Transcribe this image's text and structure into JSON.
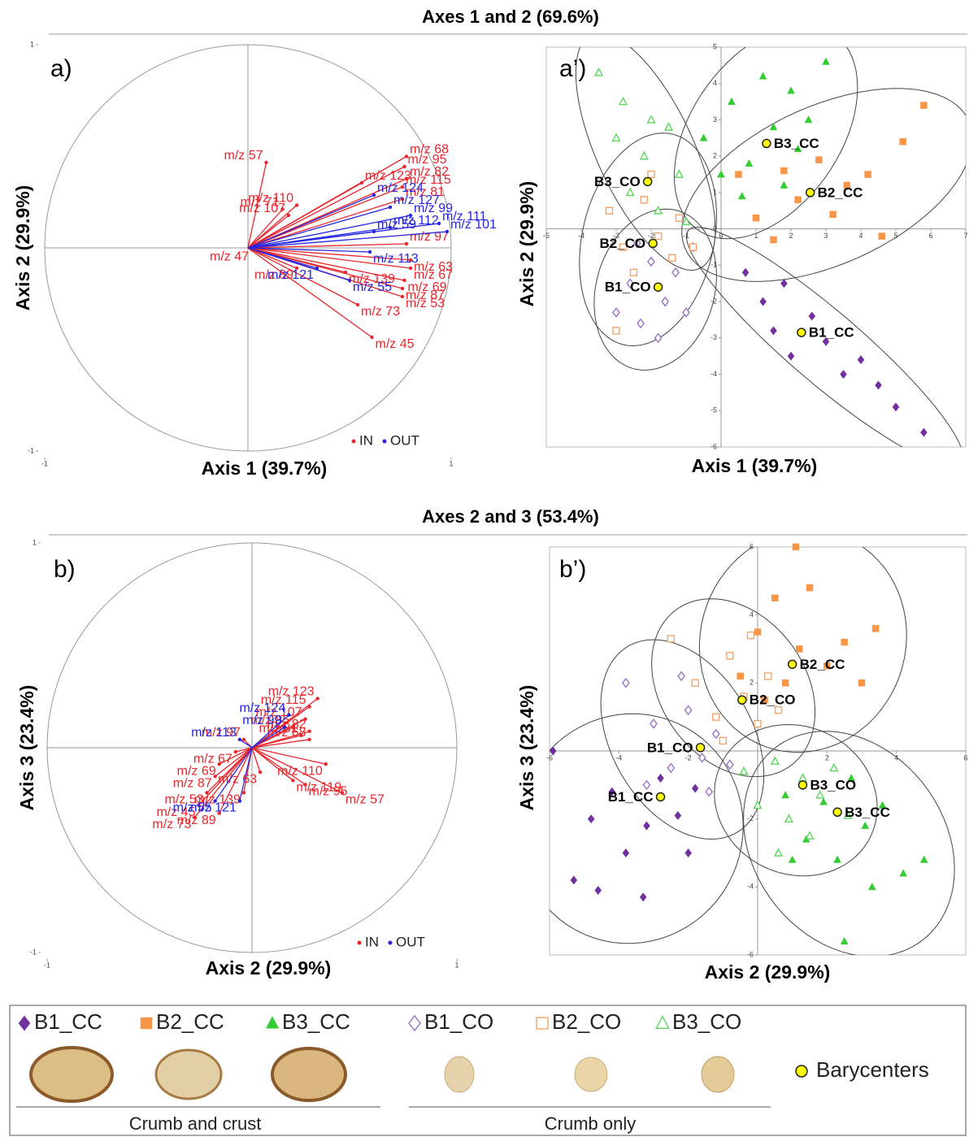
{
  "sections": [
    {
      "title": "Axes 1 and 2 (69.6%)"
    },
    {
      "title": "Axes 2 and 3 (53.4%)"
    }
  ],
  "chart_data": [
    {
      "type": "biplot",
      "panel_label": "a)",
      "xlabel": "Axis 1 (39.7%)",
      "ylabel": "Axis 2 (29.9%)",
      "xlim": [
        -1,
        1
      ],
      "ylim": [
        -1,
        1
      ],
      "xticks": [
        -1,
        1
      ],
      "yticks": [
        -1,
        1
      ],
      "legend": "bottom-right",
      "series": [
        {
          "name": "IN",
          "color": "#e8262b",
          "points": [
            {
              "label": "m/z 57",
              "x": 0.09,
              "y": 0.42
            },
            {
              "label": "m/z 110",
              "x": 0.24,
              "y": 0.21
            },
            {
              "label": "m/z 71",
              "x": 0.17,
              "y": 0.19
            },
            {
              "label": "m/z 107",
              "x": 0.2,
              "y": 0.16
            },
            {
              "label": "m/z 123",
              "x": 0.56,
              "y": 0.32
            },
            {
              "label": "m/z 68",
              "x": 0.78,
              "y": 0.45
            },
            {
              "label": "m/z 95",
              "x": 0.77,
              "y": 0.4
            },
            {
              "label": "m/z 82",
              "x": 0.78,
              "y": 0.34
            },
            {
              "label": "m/z 115",
              "x": 0.76,
              "y": 0.3
            },
            {
              "label": "m/z 81",
              "x": 0.76,
              "y": 0.24
            },
            {
              "label": "m/z 97",
              "x": 0.78,
              "y": 0.02
            },
            {
              "label": "m/z 63",
              "x": 0.8,
              "y": -0.06
            },
            {
              "label": "m/z 67",
              "x": 0.8,
              "y": -0.1
            },
            {
              "label": "m/z 69",
              "x": 0.77,
              "y": -0.16
            },
            {
              "label": "m/z 87",
              "x": 0.76,
              "y": -0.2
            },
            {
              "label": "m/z 53",
              "x": 0.76,
              "y": -0.24
            },
            {
              "label": "m/z 73",
              "x": 0.54,
              "y": -0.28
            },
            {
              "label": "m/z 45",
              "x": 0.61,
              "y": -0.44
            },
            {
              "label": "m/z 89",
              "x": 0.24,
              "y": -0.1
            },
            {
              "label": "m/z 139",
              "x": 0.48,
              "y": -0.12
            },
            {
              "label": "m/z 47",
              "x": 0.02,
              "y": -0.01
            }
          ]
        },
        {
          "name": "OUT",
          "color": "#2525e0",
          "points": [
            {
              "label": "m/z 124",
              "x": 0.62,
              "y": 0.26
            },
            {
              "label": "m/z 127",
              "x": 0.7,
              "y": 0.2
            },
            {
              "label": "m/z 99",
              "x": 0.8,
              "y": 0.16
            },
            {
              "label": "m/z 111",
              "x": 0.94,
              "y": 0.12
            },
            {
              "label": "m/z 101",
              "x": 0.98,
              "y": 0.08
            },
            {
              "label": "m/z 112",
              "x": 0.7,
              "y": 0.1
            },
            {
              "label": "m/z 59",
              "x": 0.62,
              "y": 0.08
            },
            {
              "label": "m/z 113",
              "x": 0.6,
              "y": -0.02
            },
            {
              "label": "m/z 121",
              "x": 0.34,
              "y": -0.1
            },
            {
              "label": "m/z 55",
              "x": 0.5,
              "y": -0.16
            }
          ]
        }
      ]
    },
    {
      "type": "scatter",
      "panel_label": "a’)",
      "xlabel": "Axis 1 (39.7%)",
      "ylabel": "Axis 2 (29.9%)",
      "xlim": [
        -5,
        7
      ],
      "ylim": [
        -6,
        5
      ],
      "xticks": [
        -5,
        -4,
        -3,
        -2,
        -1,
        0,
        1,
        2,
        3,
        4,
        5,
        6,
        7
      ],
      "yticks": [
        -6,
        -5,
        -4,
        -3,
        -2,
        -1,
        0,
        1,
        2,
        3,
        4,
        5
      ],
      "series": [
        {
          "name": "B1_CC",
          "color": "#7030a0",
          "marker": "diamond",
          "filled": true,
          "x": [
            0.7,
            1.2,
            1.8,
            2.0,
            2.6,
            3.0,
            3.5,
            4.0,
            4.5,
            5.0,
            5.8,
            1.5
          ],
          "y": [
            -1.2,
            -2.0,
            -1.5,
            -3.5,
            -2.4,
            -3.1,
            -4.0,
            -3.6,
            -4.3,
            -4.9,
            -5.6,
            -2.8
          ]
        },
        {
          "name": "B2_CC",
          "color": "#f79646",
          "marker": "square",
          "filled": true,
          "x": [
            0.5,
            1.0,
            1.8,
            2.2,
            2.8,
            3.2,
            3.6,
            4.2,
            4.6,
            5.2,
            5.8,
            1.5
          ],
          "y": [
            1.5,
            0.3,
            1.6,
            0.8,
            1.9,
            0.4,
            1.2,
            1.5,
            -0.2,
            2.4,
            3.4,
            -0.3
          ]
        },
        {
          "name": "B3_CC",
          "color": "#33cc33",
          "marker": "triangle",
          "filled": true,
          "x": [
            -0.5,
            0,
            0.3,
            0.8,
            1.2,
            1.5,
            1.8,
            2.2,
            2.5,
            3.0,
            0.6,
            2.0
          ],
          "y": [
            2.5,
            1.5,
            3.5,
            1.8,
            4.2,
            2.8,
            1.2,
            2.2,
            3.0,
            4.6,
            0.9,
            3.8
          ]
        },
        {
          "name": "B1_CO",
          "color": "#9b72c4",
          "marker": "diamond",
          "filled": false,
          "x": [
            -3.0,
            -2.6,
            -2.3,
            -2.0,
            -1.6,
            -1.3,
            -1.0,
            -1.8,
            -0.8,
            -2.4
          ],
          "y": [
            -2.3,
            -1.5,
            -2.6,
            -0.9,
            -2.0,
            -1.2,
            -2.3,
            -3.0,
            -0.5,
            -0.4
          ]
        },
        {
          "name": "B2_CO",
          "color": "#f4a468",
          "marker": "square",
          "filled": false,
          "x": [
            -3.2,
            -2.8,
            -2.5,
            -2.2,
            -1.8,
            -1.4,
            -1.2,
            -0.8,
            -3.0,
            -2.0
          ],
          "y": [
            0.5,
            -0.5,
            -1.2,
            0.8,
            -0.2,
            -0.8,
            0.3,
            -0.5,
            -2.8,
            1.5
          ]
        },
        {
          "name": "B3_CO",
          "color": "#5cd65c",
          "marker": "triangle",
          "filled": false,
          "x": [
            -3.5,
            -3.0,
            -2.6,
            -2.2,
            -1.8,
            -1.5,
            -1.2,
            -2.8,
            -1.0,
            -2.0
          ],
          "y": [
            4.3,
            2.5,
            1.0,
            2.0,
            0.5,
            2.8,
            1.5,
            3.5,
            0.2,
            3.0
          ]
        }
      ],
      "barycenters": [
        {
          "name": "B3_CC",
          "x": 1.3,
          "y": 2.35
        },
        {
          "name": "B2_CC",
          "x": 2.55,
          "y": 1.0
        },
        {
          "name": "B1_CC",
          "x": 2.3,
          "y": -2.85
        },
        {
          "name": "B3_CO",
          "x": -2.1,
          "y": 1.3
        },
        {
          "name": "B2_CO",
          "x": -1.95,
          "y": -0.4
        },
        {
          "name": "B1_CO",
          "x": -1.8,
          "y": -1.6
        }
      ]
    },
    {
      "type": "biplot",
      "panel_label": "b)",
      "xlabel": "Axis 2 (29.9%)",
      "ylabel": "Axis 3 (23.4%)",
      "xlim": [
        -1,
        1
      ],
      "ylim": [
        -1,
        1
      ],
      "xticks": [
        -1,
        1
      ],
      "yticks": [
        -1,
        1
      ],
      "legend": "bottom-right",
      "series": [
        {
          "name": "IN",
          "color": "#e8262b",
          "points": [
            {
              "label": "m/z 123",
              "x": 0.32,
              "y": 0.24
            },
            {
              "label": "m/z 115",
              "x": 0.28,
              "y": 0.2
            },
            {
              "label": "m/z 107",
              "x": 0.26,
              "y": 0.14
            },
            {
              "label": "m/z 85",
              "x": 0.2,
              "y": 0.1
            },
            {
              "label": "m/z 82",
              "x": 0.28,
              "y": 0.08
            },
            {
              "label": "m/z 81",
              "x": 0.24,
              "y": 0.06
            },
            {
              "label": "m/z 68",
              "x": 0.28,
              "y": 0.04
            },
            {
              "label": "m/z 97",
              "x": -0.04,
              "y": 0.04
            },
            {
              "label": "m/z 67",
              "x": -0.08,
              "y": -0.02
            },
            {
              "label": "m/z 69",
              "x": -0.16,
              "y": -0.08
            },
            {
              "label": "m/z 87",
              "x": -0.18,
              "y": -0.14
            },
            {
              "label": "m/z 53",
              "x": -0.22,
              "y": -0.22
            },
            {
              "label": "m/z 45",
              "x": -0.26,
              "y": -0.28
            },
            {
              "label": "m/z 73",
              "x": -0.28,
              "y": -0.34
            },
            {
              "label": "m/z 89",
              "x": -0.16,
              "y": -0.32
            },
            {
              "label": "m/z 139",
              "x": -0.04,
              "y": -0.22
            },
            {
              "label": "m/z 63",
              "x": 0.04,
              "y": -0.12
            },
            {
              "label": "m/z 119",
              "x": 0.2,
              "y": -0.16
            },
            {
              "label": "m/z 95",
              "x": 0.26,
              "y": -0.18
            },
            {
              "label": "m/z 57",
              "x": 0.44,
              "y": -0.22
            },
            {
              "label": "m/z 110",
              "x": 0.36,
              "y": -0.08
            }
          ]
        },
        {
          "name": "OUT",
          "color": "#2525e0",
          "points": [
            {
              "label": "m/z 124",
              "x": 0.18,
              "y": 0.16
            },
            {
              "label": "m/z 99",
              "x": 0.16,
              "y": 0.1
            },
            {
              "label": "m/z 113",
              "x": -0.06,
              "y": 0.04
            },
            {
              "label": "m/z 55",
              "x": -0.18,
              "y": -0.26
            },
            {
              "label": "m/z 121",
              "x": -0.06,
              "y": -0.26
            }
          ]
        }
      ]
    },
    {
      "type": "scatter",
      "panel_label": "b’)",
      "xlabel": "Axis 2 (29.9%)",
      "ylabel": "Axis 3 (23.4%)",
      "xlim": [
        -6,
        6
      ],
      "ylim": [
        -6,
        6
      ],
      "xticks": [
        -6,
        -4,
        -2,
        2,
        4,
        6
      ],
      "yticks": [
        -6,
        -4,
        -2,
        2,
        4,
        6
      ],
      "series": [
        {
          "name": "B1_CC",
          "color": "#7030a0",
          "marker": "diamond",
          "filled": true,
          "x": [
            -5.9,
            -5.3,
            -4.8,
            -4.2,
            -3.8,
            -3.2,
            -2.8,
            -2.3,
            -1.8,
            -3.3,
            -2.0,
            -4.6
          ],
          "y": [
            0,
            -3.8,
            -2.0,
            -1.2,
            -3.0,
            -2.2,
            -0.8,
            -1.9,
            -1.1,
            -4.3,
            -3.0,
            -4.1
          ]
        },
        {
          "name": "B2_CC",
          "color": "#f79646",
          "marker": "square",
          "filled": true,
          "x": [
            -0.5,
            0,
            0.5,
            0.8,
            1.2,
            1.5,
            2.0,
            2.5,
            3.0,
            3.4,
            1.1,
            0.2
          ],
          "y": [
            2.2,
            3.5,
            4.5,
            2.0,
            3.0,
            4.8,
            2.5,
            3.2,
            2.0,
            3.6,
            6.0,
            1.5
          ]
        },
        {
          "name": "B3_CC",
          "color": "#33cc33",
          "marker": "triangle",
          "filled": true,
          "x": [
            0.8,
            1.4,
            1.9,
            2.3,
            2.7,
            3.1,
            3.6,
            4.2,
            4.8,
            2.5,
            1.0,
            3.3
          ],
          "y": [
            -1.3,
            -2.6,
            -1.5,
            -3.2,
            -0.8,
            -2.2,
            -1.6,
            -3.6,
            -3.2,
            -5.6,
            -3.2,
            -4.0
          ]
        },
        {
          "name": "B1_CO",
          "color": "#9b72c4",
          "marker": "diamond",
          "filled": false,
          "x": [
            -3.8,
            -3.0,
            -2.5,
            -2.0,
            -1.6,
            -1.2,
            -0.8,
            -2.2,
            -1.4,
            -3.2
          ],
          "y": [
            2.0,
            0.8,
            -0.5,
            1.2,
            -0.2,
            0.5,
            -0.4,
            2.2,
            -1.2,
            -1.0
          ]
        },
        {
          "name": "B2_CO",
          "color": "#f4a468",
          "marker": "square",
          "filled": false,
          "x": [
            -2.5,
            -1.8,
            -1.2,
            -0.8,
            -0.4,
            0,
            0.3,
            0.6,
            -1.0,
            -0.2
          ],
          "y": [
            3.3,
            2.0,
            1.0,
            2.8,
            1.6,
            0.8,
            2.2,
            1.2,
            0.3,
            3.4
          ]
        },
        {
          "name": "B3_CO",
          "color": "#5cd65c",
          "marker": "triangle",
          "filled": false,
          "x": [
            -0.4,
            0,
            0.5,
            0.9,
            1.3,
            1.8,
            2.2,
            0.6,
            2.6,
            1.5
          ],
          "y": [
            -0.6,
            -1.6,
            -0.3,
            -2.0,
            -0.8,
            -1.3,
            -0.5,
            -3.0,
            -1.9,
            -2.5
          ]
        }
      ],
      "barycenters": [
        {
          "name": "B2_CC",
          "x": 1.0,
          "y": 2.55
        },
        {
          "name": "B2_CO",
          "x": -0.45,
          "y": 1.5
        },
        {
          "name": "B1_CO",
          "x": -1.65,
          "y": 0.1
        },
        {
          "name": "B1_CC",
          "x": -2.8,
          "y": -1.35
        },
        {
          "name": "B3_CO",
          "x": 1.3,
          "y": -1.0
        },
        {
          "name": "B3_CC",
          "x": 2.3,
          "y": -1.8
        }
      ]
    }
  ],
  "legend": {
    "items": [
      {
        "name": "B1_CC",
        "color": "#7030a0",
        "marker": "diamond",
        "filled": true
      },
      {
        "name": "B2_CC",
        "color": "#f79646",
        "marker": "square",
        "filled": true
      },
      {
        "name": "B3_CC",
        "color": "#33cc33",
        "marker": "triangle",
        "filled": true
      },
      {
        "name": "B1_CO",
        "color": "#9b72c4",
        "marker": "diamond",
        "filled": false
      },
      {
        "name": "B2_CO",
        "color": "#f4a468",
        "marker": "square",
        "filled": false
      },
      {
        "name": "B3_CO",
        "color": "#5cd65c",
        "marker": "triangle",
        "filled": false
      }
    ],
    "groups": [
      "Crumb and crust",
      "Crumb only"
    ],
    "barycenter_label": "Barycenters"
  }
}
